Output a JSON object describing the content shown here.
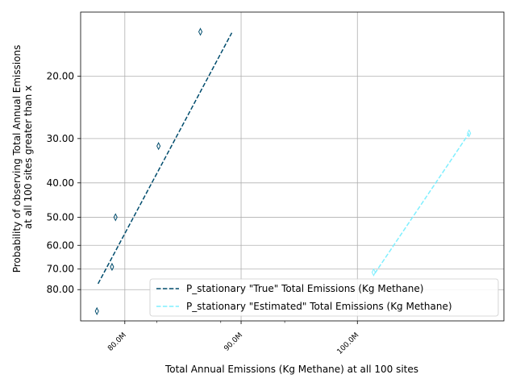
{
  "chart_data": {
    "type": "line",
    "xlabel": "Total Annual Emissions (Kg Methane) at all 100 sites",
    "ylabel_lines": [
      "Probability of observing Total Annual Emissions",
      "at all 100 sites greater than x"
    ],
    "x_ticks": [
      {
        "value": 80000000,
        "label": "80.0M"
      },
      {
        "value": 90000000,
        "label": "90.0M"
      },
      {
        "value": 100000000,
        "label": "100.0M"
      }
    ],
    "x_minor_ticks": [
      82750000,
      88250000,
      93750000
    ],
    "y_scale": "log",
    "y_ticks": [
      {
        "value": 20,
        "label": "20.00"
      },
      {
        "value": 30,
        "label": "30.00"
      },
      {
        "value": 40,
        "label": "40.00"
      },
      {
        "value": 50,
        "label": "50.00"
      },
      {
        "value": 60,
        "label": "60.00"
      },
      {
        "value": 70,
        "label": "70.00"
      },
      {
        "value": 80,
        "label": "80.00"
      }
    ],
    "xlim": [
      76200000,
      112600000
    ],
    "grid": true,
    "legend_position": "lower-right",
    "series": [
      {
        "name": "P_stationary \"True\" Total Emissions (Kg Methane)",
        "color": "#004c6d",
        "line_style": "dashed",
        "line": [
          [
            77700000,
            77.0
          ],
          [
            89200000,
            15.1
          ]
        ],
        "markers": [
          [
            77600000,
            92.0
          ],
          [
            78900000,
            69.0
          ],
          [
            79200000,
            50.0
          ],
          [
            82900000,
            31.5
          ],
          [
            86500000,
            15.0
          ]
        ]
      },
      {
        "name": "P_stationary \"Estimated\" Total Emissions (Kg Methane)",
        "color": "#7fefff",
        "line_style": "dashed",
        "line": [
          [
            101500000,
            72.0
          ],
          [
            109600000,
            29.0
          ]
        ],
        "markers": [
          [
            101400000,
            71.5
          ],
          [
            109600000,
            29.0
          ]
        ]
      }
    ]
  }
}
